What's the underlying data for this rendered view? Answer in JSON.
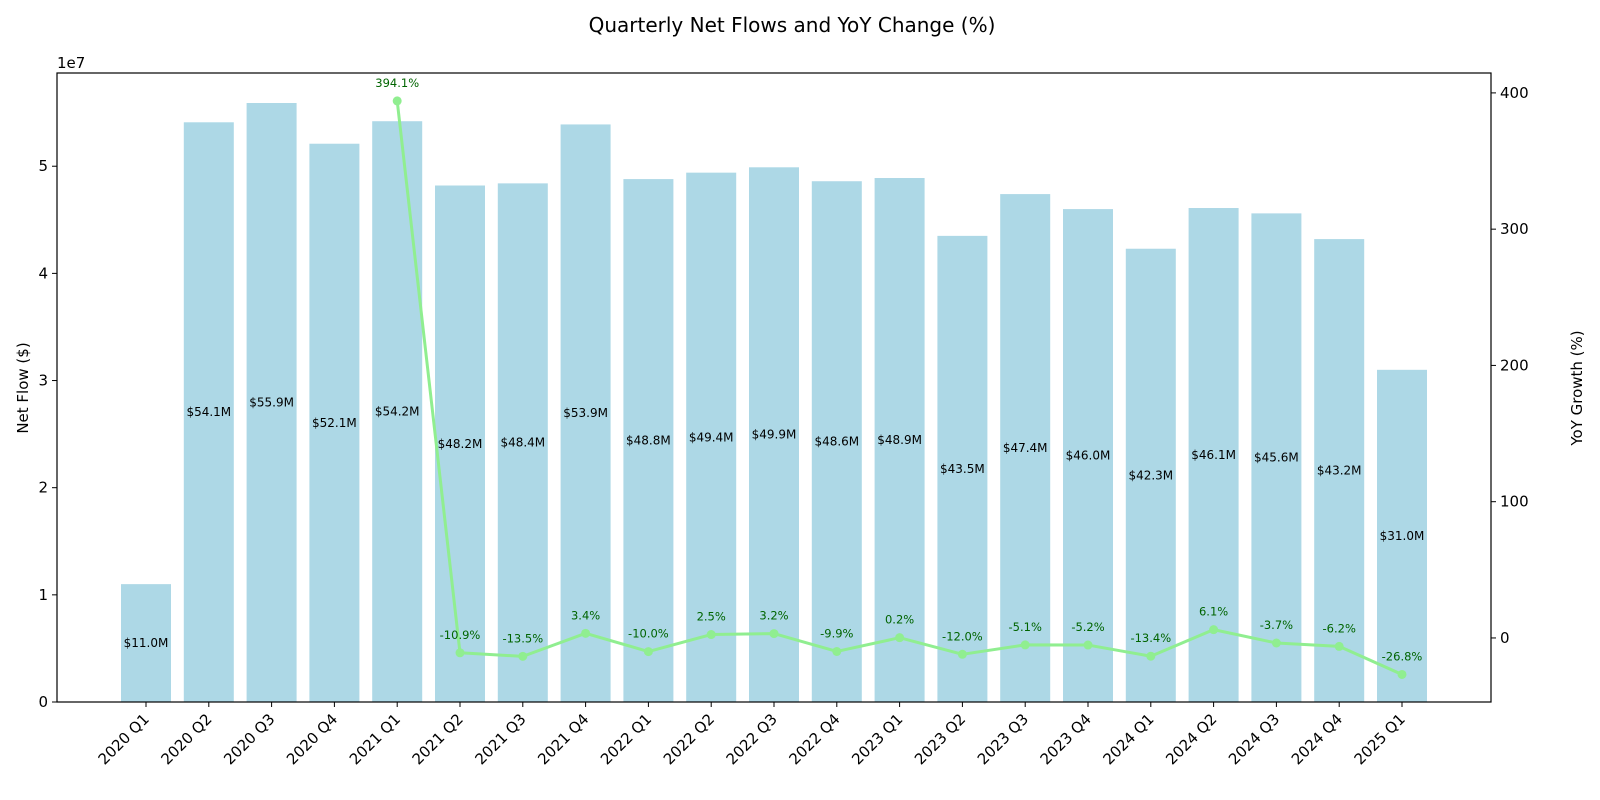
{
  "chart_data": {
    "type": "bar",
    "title": "Quarterly Net Flows and YoY Change (%)",
    "xlabel": "",
    "ylabel": "Net Flow ($)",
    "y2label": "YoY Growth (%)",
    "y_offset_label": "1e7",
    "ylim": [
      0,
      58700000
    ],
    "y2lim": [
      -47,
      414.6
    ],
    "yticks": [
      0,
      1,
      2,
      3,
      4,
      5
    ],
    "yticks_scale": 10000000,
    "y2ticks": [
      0,
      100,
      200,
      300,
      400
    ],
    "grid": false,
    "colors": {
      "bar": "#add8e6",
      "line": "#90ee90",
      "yoy_text": "#006400"
    },
    "categories": [
      "2020 Q1",
      "2020 Q2",
      "2020 Q3",
      "2020 Q4",
      "2021 Q1",
      "2021 Q2",
      "2021 Q3",
      "2021 Q4",
      "2022 Q1",
      "2022 Q2",
      "2022 Q3",
      "2022 Q4",
      "2023 Q1",
      "2023 Q2",
      "2023 Q3",
      "2023 Q4",
      "2024 Q1",
      "2024 Q2",
      "2024 Q3",
      "2024 Q4",
      "2025 Q1"
    ],
    "series": [
      {
        "name": "Net Flow",
        "kind": "bar",
        "axis": "left",
        "values": [
          11000000,
          54100000,
          55900000,
          52100000,
          54200000,
          48200000,
          48400000,
          53900000,
          48800000,
          49400000,
          49900000,
          48600000,
          48900000,
          43500000,
          47400000,
          46000000,
          42300000,
          46100000,
          45600000,
          43200000,
          31000000
        ],
        "labels": [
          "$11.0M",
          "$54.1M",
          "$55.9M",
          "$52.1M",
          "$54.2M",
          "$48.2M",
          "$48.4M",
          "$53.9M",
          "$48.8M",
          "$49.4M",
          "$49.9M",
          "$48.6M",
          "$48.9M",
          "$43.5M",
          "$47.4M",
          "$46.0M",
          "$42.3M",
          "$46.1M",
          "$45.6M",
          "$43.2M",
          "$31.0M"
        ]
      },
      {
        "name": "YoY Growth",
        "kind": "line",
        "axis": "right",
        "values": [
          null,
          null,
          null,
          null,
          394.1,
          -10.9,
          -13.5,
          3.4,
          -10.0,
          2.5,
          3.2,
          -9.9,
          0.2,
          -12.0,
          -5.1,
          -5.2,
          -13.4,
          6.1,
          -3.7,
          -6.2,
          -26.8
        ],
        "labels": [
          null,
          null,
          null,
          null,
          "394.1%",
          "-10.9%",
          "-13.5%",
          "3.4%",
          "-10.0%",
          "2.5%",
          "3.2%",
          "-9.9%",
          "0.2%",
          "-12.0%",
          "-5.1%",
          "-5.2%",
          "-13.4%",
          "6.1%",
          "-3.7%",
          "-6.2%",
          "-26.8%"
        ]
      }
    ]
  }
}
